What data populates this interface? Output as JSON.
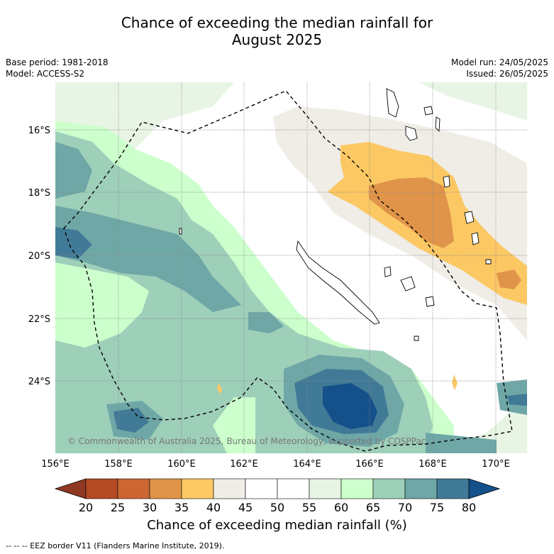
{
  "title_line1": "Chance of exceeding the median rainfall for",
  "title_line2": "August 2025",
  "base_period": "Base period: 1981-2018",
  "model": "Model: ACCESS-S2",
  "model_run": "Model run: 24/05/2025",
  "issued": "Issued: 26/05/2025",
  "lat_labels": [
    "16°S",
    "18°S",
    "20°S",
    "22°S",
    "24°S"
  ],
  "lon_labels": [
    "156°E",
    "158°E",
    "160°E",
    "162°E",
    "164°E",
    "166°E",
    "168°E",
    "170°E"
  ],
  "copyright": "© Commonwealth of Australia 2025, Bureau of Meteorology, supported by COSPPac",
  "colorbar": {
    "ticks": [
      "20",
      "25",
      "30",
      "35",
      "40",
      "45",
      "50",
      "55",
      "60",
      "65",
      "70",
      "75",
      "80"
    ],
    "colors": [
      "#b34a24",
      "#cc6633",
      "#e0944a",
      "#fcc864",
      "#efede6",
      "#ffffff",
      "#ffffff",
      "#e8f5e4",
      "#ccffcc",
      "#9ecfb9",
      "#6fa7a7",
      "#417a96"
    ],
    "low_color": "#8f3822",
    "high_color": "#14508a",
    "label": "Chance of exceeding median rainfall (%)"
  },
  "legend_note": "--  --  -- EEZ border V11 (Flanders Marine Institute, 2019).",
  "colors": {
    "orange": "#fcc864",
    "dark_orange": "#e0944a",
    "beige": "#efede6",
    "pale_green": "#e8f5e4",
    "light_green": "#ccffcc",
    "teal_light": "#9ecfb9",
    "teal": "#6fa7a7",
    "blue": "#417a96",
    "dark_blue": "#14508a"
  }
}
